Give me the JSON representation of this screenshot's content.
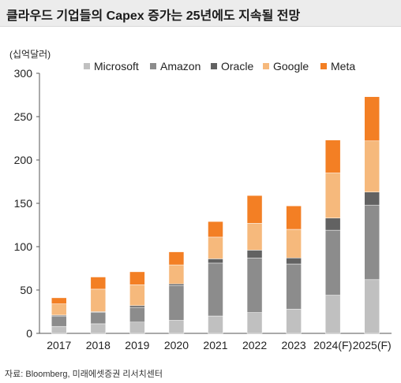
{
  "title": "클라우드 기업들의 Capex 증가는 25년에도 지속될 전망",
  "unit_label": "(십억달러)",
  "source": "자료: Bloomberg, 미래에셋증권 리서치센터",
  "colors": {
    "Microsoft": "#c0c0c0",
    "Amazon": "#8c8c8c",
    "Oracle": "#626262",
    "Google": "#f6b97c",
    "Meta": "#f37f24"
  },
  "chart_data": {
    "type": "bar",
    "stacked": true,
    "categories": [
      "2017",
      "2018",
      "2019",
      "2020",
      "2021",
      "2022",
      "2023",
      "2024(F)",
      "2025(F)"
    ],
    "series": [
      {
        "name": "Microsoft",
        "values": [
          8,
          11,
          13,
          15,
          20,
          24,
          28,
          44,
          62
        ]
      },
      {
        "name": "Amazon",
        "values": [
          12,
          13,
          17,
          40,
          61,
          63,
          52,
          75,
          86
        ]
      },
      {
        "name": "Oracle",
        "values": [
          1,
          1,
          2,
          2,
          5,
          9,
          7,
          14,
          15
        ]
      },
      {
        "name": "Google",
        "values": [
          13,
          26,
          24,
          22,
          25,
          31,
          33,
          52,
          59
        ]
      },
      {
        "name": "Meta",
        "values": [
          7,
          14,
          15,
          15,
          18,
          32,
          27,
          38,
          51
        ]
      }
    ],
    "ylim": [
      0,
      300
    ],
    "yticks": [
      0,
      50,
      100,
      150,
      200,
      250,
      300
    ],
    "grid": false,
    "legend": "top"
  }
}
